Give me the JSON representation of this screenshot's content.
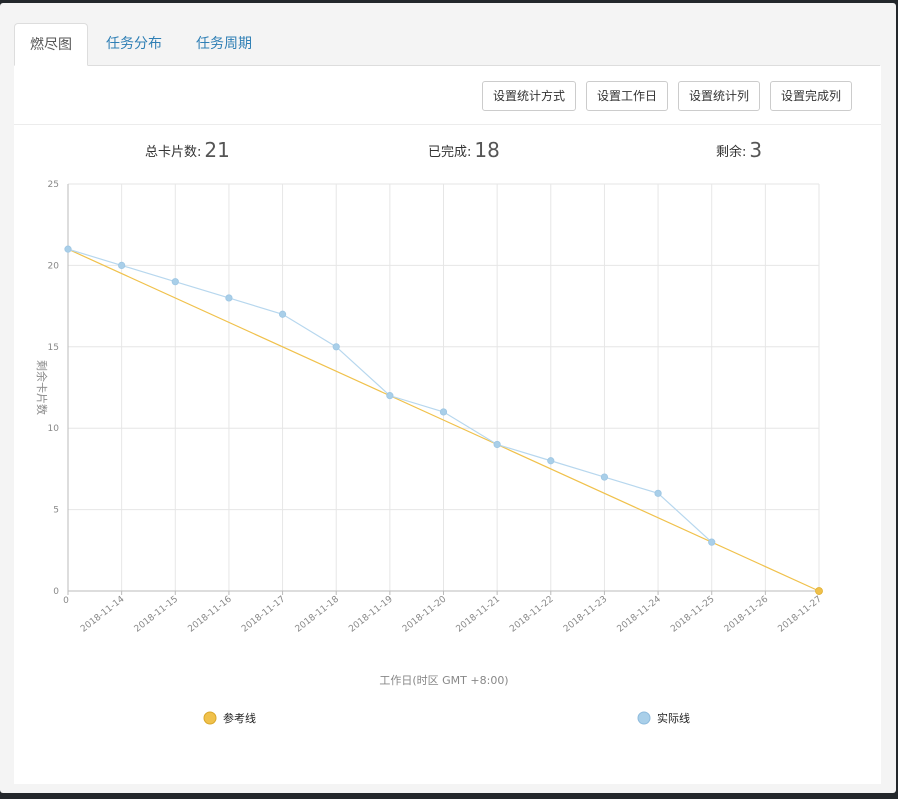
{
  "tabs": [
    {
      "label": "燃尽图",
      "active": true
    },
    {
      "label": "任务分布",
      "active": false
    },
    {
      "label": "任务周期",
      "active": false
    }
  ],
  "toolbar": {
    "stat_mode_label": "设置统计方式",
    "workday_label": "设置工作日",
    "stat_column_label": "设置统计列",
    "done_column_label": "设置完成列"
  },
  "summary": {
    "total_label": "总卡片数:",
    "total_value": "21",
    "done_label": "已完成:",
    "done_value": "18",
    "remaining_label": "剩余:",
    "remaining_value": "3"
  },
  "colors": {
    "reference": "#f0c14b",
    "actual": "#b7d7ee",
    "actual_point": "#a9cfe9"
  },
  "chart_data": {
    "type": "line",
    "title": "",
    "xlabel": "工作日(时区 GMT +8:00)",
    "ylabel": "剩余卡片数",
    "ylim": [
      0,
      25
    ],
    "yticks": [
      0,
      5,
      10,
      15,
      20,
      25
    ],
    "categories": [
      "0",
      "2018-11-14",
      "2018-11-15",
      "2018-11-16",
      "2018-11-17",
      "2018-11-18",
      "2018-11-19",
      "2018-11-20",
      "2018-11-21",
      "2018-11-22",
      "2018-11-23",
      "2018-11-24",
      "2018-11-25",
      "2018-11-26",
      "2018-11-27"
    ],
    "grid": true,
    "legend_position": "bottom",
    "series": [
      {
        "name": "参考线",
        "start": 21,
        "end": 0,
        "values": [
          21,
          null,
          null,
          null,
          null,
          null,
          null,
          null,
          null,
          null,
          null,
          null,
          null,
          null,
          0
        ]
      },
      {
        "name": "实际线",
        "values": [
          21,
          20,
          19,
          18,
          17,
          15,
          12,
          11,
          9,
          8,
          7,
          6,
          3,
          null,
          null
        ]
      }
    ]
  }
}
